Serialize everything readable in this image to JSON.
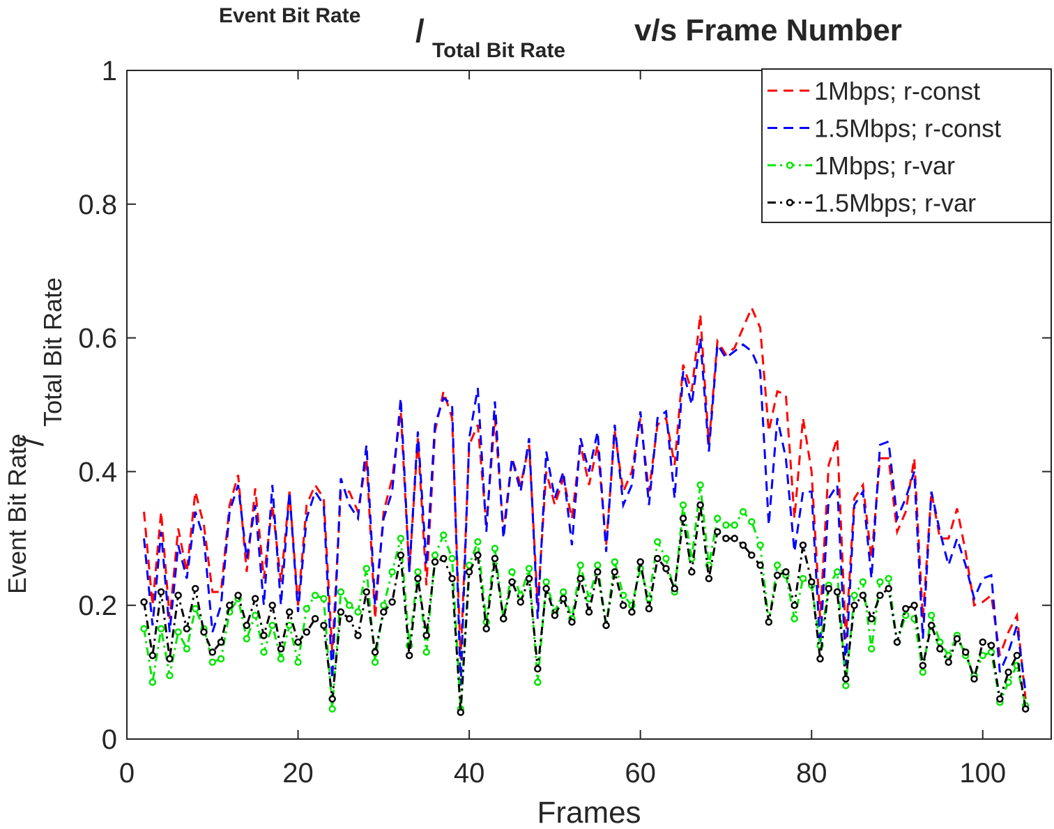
{
  "chart_data": {
    "type": "line",
    "title_parts": [
      "Event Bit Rate",
      "/",
      "Total Bit Rate",
      "v/s Frame Number"
    ],
    "ylabel_parts": [
      "Event Bit Rate",
      "/",
      "Total Bit Rate"
    ],
    "xlabel": "Frames",
    "x": [
      2,
      3,
      4,
      5,
      6,
      7,
      8,
      9,
      10,
      11,
      12,
      13,
      14,
      15,
      16,
      17,
      18,
      19,
      20,
      21,
      22,
      23,
      24,
      25,
      26,
      27,
      28,
      29,
      30,
      31,
      32,
      33,
      34,
      35,
      36,
      37,
      38,
      39,
      40,
      41,
      42,
      43,
      44,
      45,
      46,
      47,
      48,
      49,
      50,
      51,
      52,
      53,
      54,
      55,
      56,
      57,
      58,
      59,
      60,
      61,
      62,
      63,
      64,
      65,
      66,
      67,
      68,
      69,
      70,
      71,
      72,
      73,
      74,
      75,
      76,
      77,
      78,
      79,
      80,
      81,
      82,
      83,
      84,
      85,
      86,
      87,
      88,
      89,
      90,
      91,
      92,
      93,
      94,
      95,
      96,
      97,
      98,
      99,
      100,
      101,
      102,
      103,
      104,
      105
    ],
    "series": [
      {
        "name": "1Mbps; r-const",
        "color": "#ff0000",
        "linestyle": "dashed",
        "marker": "none",
        "values": [
          0.34,
          0.2,
          0.34,
          0.18,
          0.315,
          0.25,
          0.37,
          0.32,
          0.22,
          0.22,
          0.35,
          0.395,
          0.25,
          0.375,
          0.24,
          0.35,
          0.235,
          0.37,
          0.2,
          0.35,
          0.38,
          0.36,
          0.13,
          0.37,
          0.37,
          0.34,
          0.42,
          0.18,
          0.34,
          0.39,
          0.49,
          0.25,
          0.45,
          0.23,
          0.46,
          0.52,
          0.48,
          0.12,
          0.44,
          0.47,
          0.32,
          0.48,
          0.31,
          0.42,
          0.38,
          0.44,
          0.2,
          0.4,
          0.35,
          0.39,
          0.33,
          0.44,
          0.38,
          0.44,
          0.29,
          0.46,
          0.37,
          0.4,
          0.48,
          0.37,
          0.47,
          0.48,
          0.41,
          0.56,
          0.52,
          0.635,
          0.44,
          0.595,
          0.575,
          0.585,
          0.615,
          0.645,
          0.615,
          0.46,
          0.52,
          0.515,
          0.33,
          0.48,
          0.4,
          0.18,
          0.41,
          0.45,
          0.15,
          0.36,
          0.38,
          0.27,
          0.42,
          0.42,
          0.31,
          0.34,
          0.42,
          0.18,
          0.37,
          0.3,
          0.3,
          0.345,
          0.28,
          0.2,
          0.205,
          0.215,
          0.125,
          0.16,
          0.185,
          0.06
        ]
      },
      {
        "name": "1.5Mbps; r-const",
        "color": "#0000ff",
        "linestyle": "dashed",
        "marker": "none",
        "values": [
          0.3,
          0.17,
          0.31,
          0.16,
          0.29,
          0.24,
          0.34,
          0.3,
          0.16,
          0.2,
          0.34,
          0.38,
          0.27,
          0.35,
          0.2,
          0.38,
          0.2,
          0.37,
          0.19,
          0.33,
          0.37,
          0.35,
          0.09,
          0.39,
          0.35,
          0.33,
          0.44,
          0.2,
          0.33,
          0.37,
          0.51,
          0.25,
          0.46,
          0.26,
          0.47,
          0.51,
          0.5,
          0.08,
          0.45,
          0.525,
          0.31,
          0.505,
          0.3,
          0.42,
          0.37,
          0.45,
          0.18,
          0.43,
          0.36,
          0.4,
          0.29,
          0.45,
          0.4,
          0.46,
          0.28,
          0.47,
          0.35,
          0.38,
          0.49,
          0.35,
          0.48,
          0.49,
          0.36,
          0.55,
          0.5,
          0.6,
          0.43,
          0.59,
          0.57,
          0.58,
          0.59,
          0.58,
          0.55,
          0.32,
          0.48,
          0.42,
          0.28,
          0.37,
          0.37,
          0.14,
          0.36,
          0.38,
          0.11,
          0.35,
          0.37,
          0.24,
          0.44,
          0.445,
          0.33,
          0.36,
          0.4,
          0.15,
          0.37,
          0.31,
          0.26,
          0.3,
          0.26,
          0.21,
          0.24,
          0.245,
          0.1,
          0.13,
          0.17,
          0.07
        ]
      },
      {
        "name": "1Mbps; r-var",
        "color": "#00e600",
        "linestyle": "dashdot",
        "marker": "o",
        "values": [
          0.165,
          0.085,
          0.165,
          0.095,
          0.16,
          0.135,
          0.195,
          0.165,
          0.115,
          0.12,
          0.19,
          0.21,
          0.15,
          0.185,
          0.13,
          0.17,
          0.12,
          0.17,
          0.115,
          0.195,
          0.215,
          0.21,
          0.045,
          0.22,
          0.2,
          0.19,
          0.255,
          0.115,
          0.2,
          0.25,
          0.3,
          0.14,
          0.25,
          0.13,
          0.275,
          0.305,
          0.27,
          0.045,
          0.26,
          0.295,
          0.175,
          0.285,
          0.18,
          0.25,
          0.215,
          0.255,
          0.085,
          0.235,
          0.19,
          0.22,
          0.18,
          0.26,
          0.21,
          0.26,
          0.17,
          0.265,
          0.215,
          0.2,
          0.255,
          0.21,
          0.295,
          0.27,
          0.22,
          0.35,
          0.27,
          0.38,
          0.26,
          0.33,
          0.32,
          0.32,
          0.34,
          0.325,
          0.29,
          0.175,
          0.26,
          0.245,
          0.18,
          0.24,
          0.23,
          0.14,
          0.23,
          0.25,
          0.08,
          0.215,
          0.235,
          0.135,
          0.235,
          0.24,
          0.145,
          0.185,
          0.18,
          0.1,
          0.185,
          0.145,
          0.125,
          0.155,
          0.125,
          0.095,
          0.125,
          0.13,
          0.055,
          0.085,
          0.11,
          0.05
        ]
      },
      {
        "name": "1.5Mbps; r-var",
        "color": "#000000",
        "linestyle": "dashdot",
        "marker": "o",
        "values": [
          0.205,
          0.125,
          0.22,
          0.12,
          0.215,
          0.165,
          0.225,
          0.16,
          0.13,
          0.145,
          0.2,
          0.215,
          0.17,
          0.21,
          0.155,
          0.2,
          0.135,
          0.19,
          0.145,
          0.16,
          0.18,
          0.17,
          0.06,
          0.19,
          0.18,
          0.155,
          0.22,
          0.13,
          0.19,
          0.205,
          0.275,
          0.125,
          0.24,
          0.155,
          0.265,
          0.27,
          0.24,
          0.04,
          0.25,
          0.275,
          0.165,
          0.27,
          0.18,
          0.235,
          0.205,
          0.24,
          0.105,
          0.225,
          0.185,
          0.21,
          0.175,
          0.24,
          0.19,
          0.25,
          0.17,
          0.25,
          0.2,
          0.19,
          0.265,
          0.195,
          0.27,
          0.255,
          0.225,
          0.33,
          0.25,
          0.35,
          0.24,
          0.31,
          0.3,
          0.3,
          0.29,
          0.275,
          0.26,
          0.175,
          0.245,
          0.25,
          0.2,
          0.29,
          0.235,
          0.12,
          0.225,
          0.22,
          0.09,
          0.2,
          0.215,
          0.18,
          0.215,
          0.225,
          0.145,
          0.195,
          0.2,
          0.11,
          0.17,
          0.135,
          0.115,
          0.15,
          0.13,
          0.09,
          0.145,
          0.14,
          0.06,
          0.1,
          0.125,
          0.045
        ]
      }
    ],
    "xlim": [
      0,
      108
    ],
    "xticks": [
      0,
      20,
      40,
      60,
      80,
      100
    ],
    "ylim": [
      0,
      1
    ],
    "yticks": [
      0,
      0.2,
      0.4,
      0.6,
      0.8,
      1
    ],
    "grid": false,
    "legend": "top-right"
  }
}
